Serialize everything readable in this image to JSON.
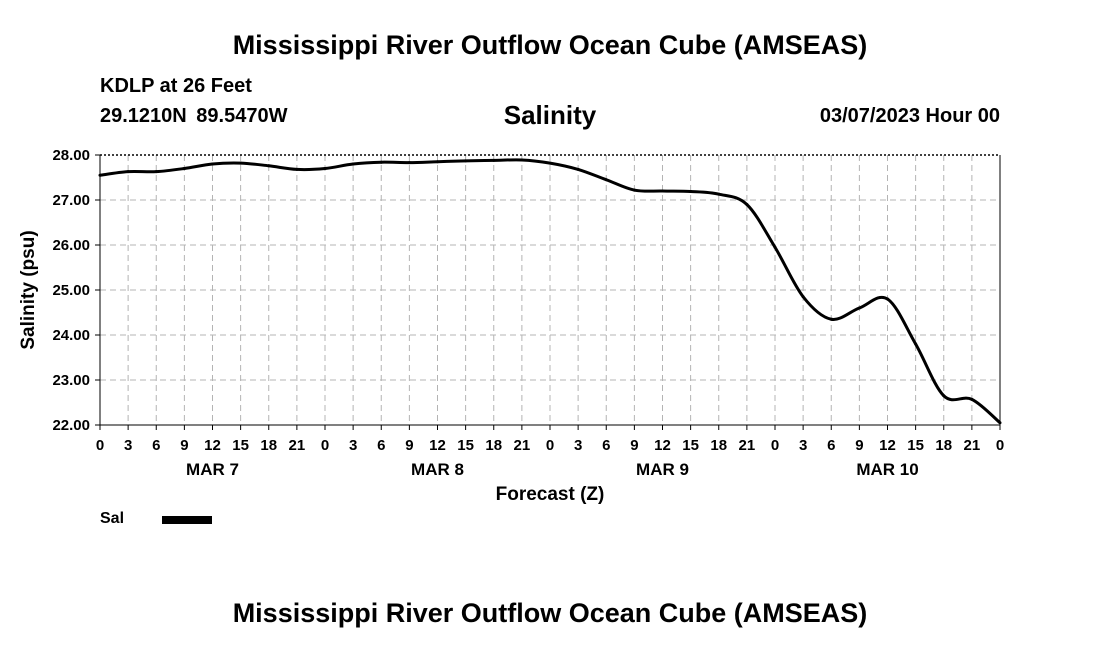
{
  "header": {
    "title": "Mississippi River Outflow Ocean Cube (AMSEAS)",
    "station": "KDLP at 26 Feet",
    "coordinates": "29.1210N 89.5470W",
    "chart_title": "Salinity",
    "datetime": "03/07/2023 Hour 00"
  },
  "footer": {
    "title": "Mississippi River Outflow Ocean Cube (AMSEAS)"
  },
  "legend": {
    "label": "Sal",
    "color": "#000000"
  },
  "chart_data": {
    "type": "line",
    "title": "Salinity",
    "xlabel": "Forecast (Z)",
    "ylabel": "Salinity (psu)",
    "ylim": [
      22.0,
      28.0
    ],
    "xlim": [
      0,
      96
    ],
    "grid": true,
    "x_tick_step_hours": 3,
    "x_tick_labels": [
      "0",
      "3",
      "6",
      "9",
      "12",
      "15",
      "18",
      "21",
      "0",
      "3",
      "6",
      "9",
      "12",
      "15",
      "18",
      "21",
      "0",
      "3",
      "6",
      "9",
      "12",
      "15",
      "18",
      "21",
      "0",
      "3",
      "6",
      "9",
      "12",
      "15",
      "18",
      "21",
      "0"
    ],
    "y_tick_labels": [
      "22.00",
      "23.00",
      "24.00",
      "25.00",
      "26.00",
      "27.00",
      "28.00"
    ],
    "y_ticks": [
      22,
      23,
      24,
      25,
      26,
      27,
      28
    ],
    "day_labels": [
      {
        "label": "MAR 7",
        "hour": 12
      },
      {
        "label": "MAR 8",
        "hour": 36
      },
      {
        "label": "MAR 9",
        "hour": 60
      },
      {
        "label": "MAR 10",
        "hour": 84
      }
    ],
    "series": [
      {
        "name": "Sal",
        "color": "#000000",
        "x": [
          0,
          3,
          6,
          9,
          12,
          15,
          18,
          21,
          24,
          27,
          30,
          33,
          36,
          39,
          42,
          45,
          48,
          51,
          54,
          57,
          60,
          63,
          66,
          69,
          72,
          75,
          78,
          81,
          84,
          87,
          90,
          93,
          96
        ],
        "values": [
          27.55,
          27.63,
          27.63,
          27.7,
          27.8,
          27.82,
          27.76,
          27.68,
          27.7,
          27.8,
          27.84,
          27.83,
          27.85,
          27.87,
          27.88,
          27.89,
          27.82,
          27.68,
          27.45,
          27.22,
          27.2,
          27.19,
          27.13,
          26.9,
          25.95,
          24.85,
          24.35,
          24.6,
          24.8,
          23.8,
          22.65,
          22.57,
          22.05
        ]
      }
    ]
  }
}
